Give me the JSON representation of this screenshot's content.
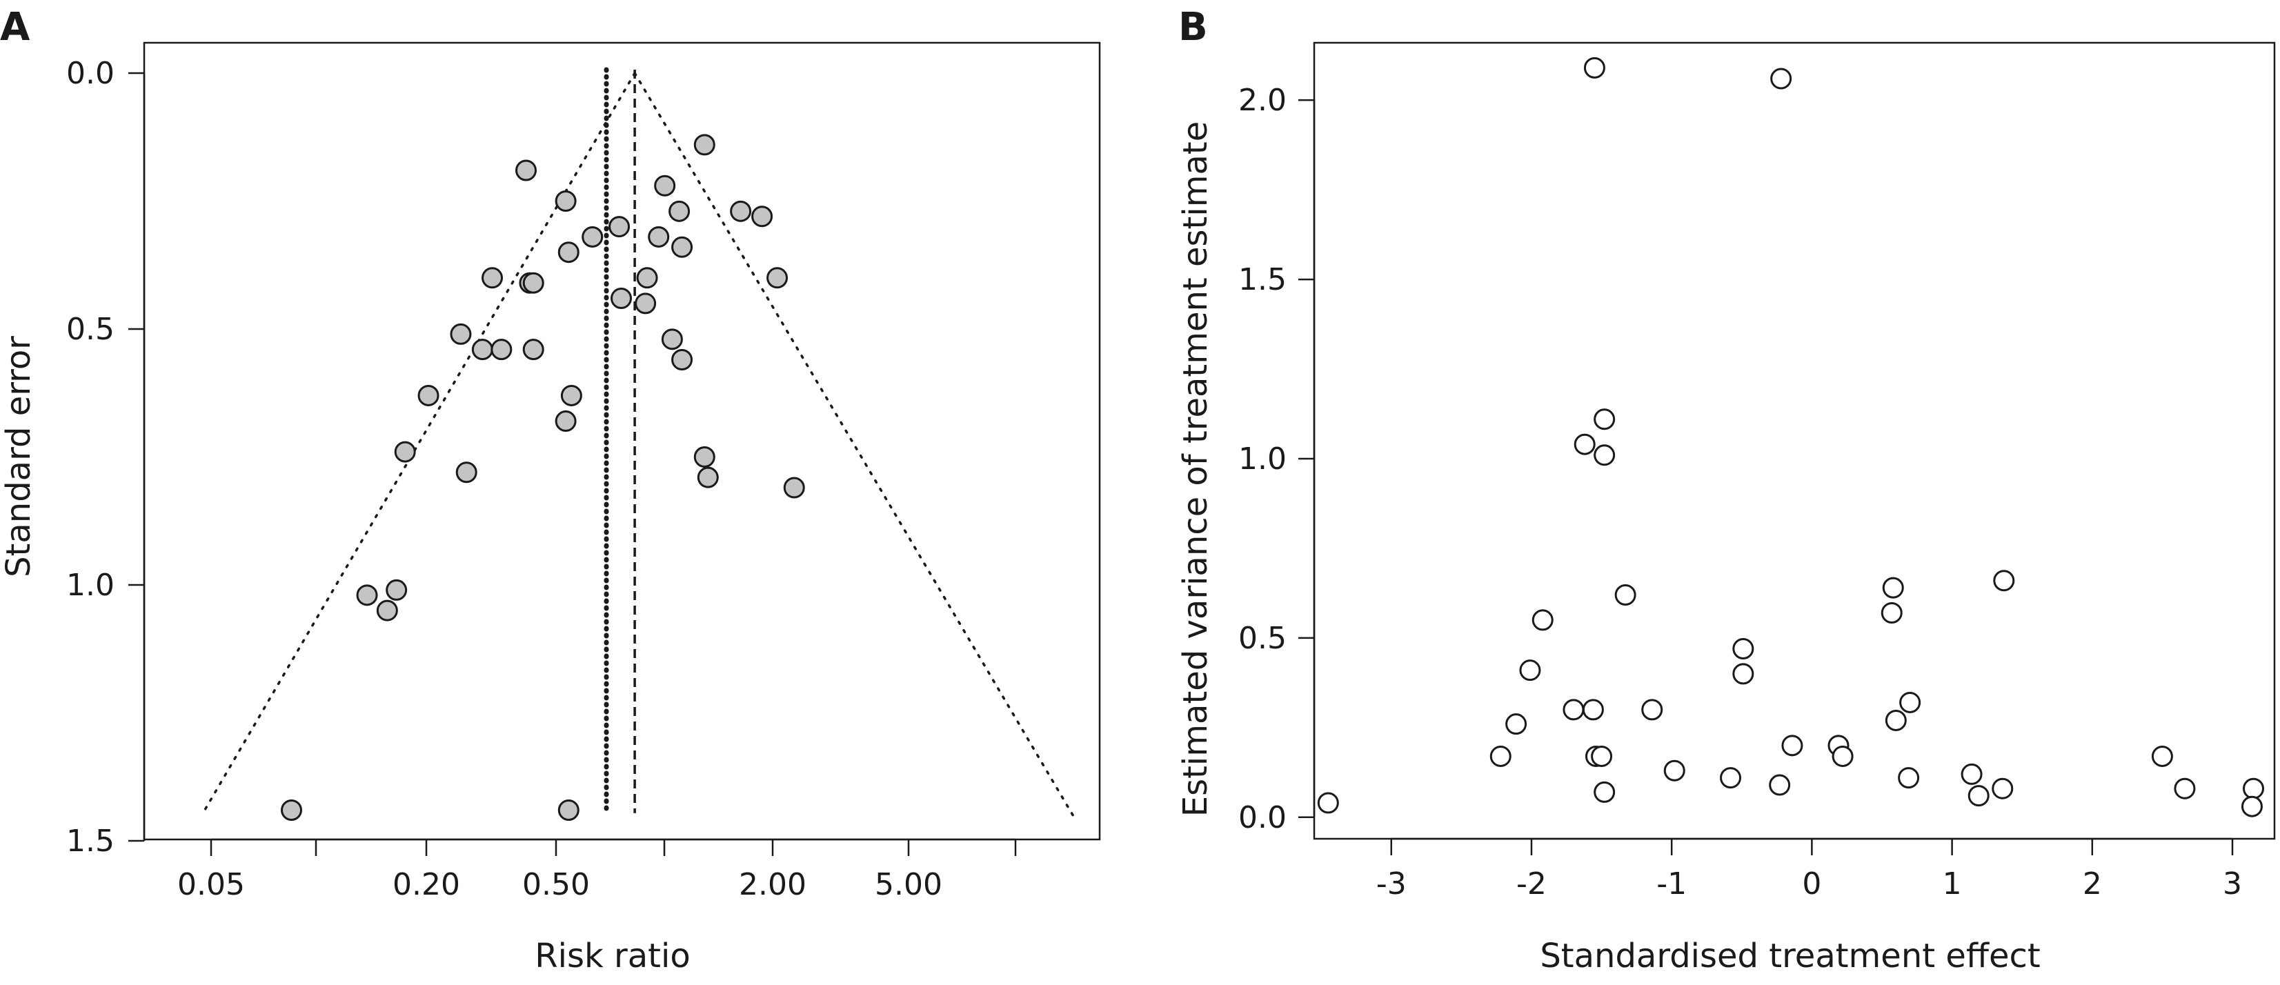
{
  "chart_data": [
    {
      "panel": "A",
      "type": "scatter",
      "xlabel": "Risk ratio",
      "ylabel": "Standard error",
      "x_scale": "log",
      "x_tick_labels": [
        "0.05",
        "0.20",
        "0.50",
        "2.00",
        "5.00"
      ],
      "y_tick_labels": [
        "0.0",
        "0.5",
        "1.0",
        "1.5"
      ],
      "ylim": [
        1.5,
        0.0
      ],
      "reference_lines": {
        "dotted_risk_ratio": 0.68,
        "dashed_risk_ratio": 0.82
      },
      "funnel_apex": {
        "risk_ratio": 0.82,
        "standard_error": 0.0
      },
      "funnel_base": {
        "standard_error": 1.45,
        "left_risk_ratio": 0.047,
        "right_risk_ratio": 14.8
      },
      "points": [
        {
          "x": 1.3,
          "y": 0.14
        },
        {
          "x": 0.4,
          "y": 0.19
        },
        {
          "x": 1.0,
          "y": 0.22
        },
        {
          "x": 0.52,
          "y": 0.25
        },
        {
          "x": 1.1,
          "y": 0.27
        },
        {
          "x": 1.65,
          "y": 0.27
        },
        {
          "x": 1.9,
          "y": 0.28
        },
        {
          "x": 0.74,
          "y": 0.3
        },
        {
          "x": 0.62,
          "y": 0.32
        },
        {
          "x": 0.96,
          "y": 0.32
        },
        {
          "x": 1.12,
          "y": 0.34
        },
        {
          "x": 0.53,
          "y": 0.35
        },
        {
          "x": 0.32,
          "y": 0.4
        },
        {
          "x": 0.41,
          "y": 0.41
        },
        {
          "x": 0.42,
          "y": 0.41
        },
        {
          "x": 0.89,
          "y": 0.4
        },
        {
          "x": 2.1,
          "y": 0.4
        },
        {
          "x": 0.75,
          "y": 0.44
        },
        {
          "x": 0.88,
          "y": 0.45
        },
        {
          "x": 0.26,
          "y": 0.51
        },
        {
          "x": 1.05,
          "y": 0.52
        },
        {
          "x": 0.3,
          "y": 0.54
        },
        {
          "x": 0.34,
          "y": 0.54
        },
        {
          "x": 0.42,
          "y": 0.54
        },
        {
          "x": 1.12,
          "y": 0.56
        },
        {
          "x": 0.21,
          "y": 0.63
        },
        {
          "x": 0.54,
          "y": 0.63
        },
        {
          "x": 0.52,
          "y": 0.68
        },
        {
          "x": 0.18,
          "y": 0.74
        },
        {
          "x": 1.3,
          "y": 0.75
        },
        {
          "x": 0.27,
          "y": 0.78
        },
        {
          "x": 1.33,
          "y": 0.79
        },
        {
          "x": 2.35,
          "y": 0.81
        },
        {
          "x": 0.17,
          "y": 1.01
        },
        {
          "x": 0.14,
          "y": 1.02
        },
        {
          "x": 0.16,
          "y": 1.05
        },
        {
          "x": 0.085,
          "y": 1.44
        },
        {
          "x": 0.53,
          "y": 1.44
        }
      ]
    },
    {
      "panel": "B",
      "type": "scatter",
      "xlabel": "Standardised treatment effect",
      "ylabel": "Estimated variance of treatment estimate",
      "x_ticks": [
        -3,
        -2,
        -1,
        0,
        1,
        2,
        3
      ],
      "x_tick_labels": [
        "-3",
        "-2",
        "-1",
        "0",
        "1",
        "2",
        "3"
      ],
      "y_ticks": [
        0.0,
        0.5,
        1.0,
        1.5,
        2.0
      ],
      "y_tick_labels": [
        "0.0",
        "0.5",
        "1.0",
        "1.5",
        "2.0"
      ],
      "xlim": [
        -3.55,
        3.3
      ],
      "ylim": [
        -0.06,
        2.16
      ],
      "points": [
        {
          "x": -1.55,
          "y": 2.09
        },
        {
          "x": -0.22,
          "y": 2.06
        },
        {
          "x": -1.48,
          "y": 1.11
        },
        {
          "x": -1.62,
          "y": 1.04
        },
        {
          "x": -1.48,
          "y": 1.01
        },
        {
          "x": 1.37,
          "y": 0.66
        },
        {
          "x": 0.58,
          "y": 0.64
        },
        {
          "x": -1.33,
          "y": 0.62
        },
        {
          "x": 0.57,
          "y": 0.57
        },
        {
          "x": -1.92,
          "y": 0.55
        },
        {
          "x": -0.49,
          "y": 0.47
        },
        {
          "x": -2.01,
          "y": 0.41
        },
        {
          "x": -0.49,
          "y": 0.4
        },
        {
          "x": 0.7,
          "y": 0.32
        },
        {
          "x": -1.7,
          "y": 0.3
        },
        {
          "x": -1.56,
          "y": 0.3
        },
        {
          "x": -1.14,
          "y": 0.3
        },
        {
          "x": 0.6,
          "y": 0.27
        },
        {
          "x": -2.11,
          "y": 0.26
        },
        {
          "x": -0.14,
          "y": 0.2
        },
        {
          "x": 0.19,
          "y": 0.2
        },
        {
          "x": -2.22,
          "y": 0.17
        },
        {
          "x": -1.54,
          "y": 0.17
        },
        {
          "x": -1.5,
          "y": 0.17
        },
        {
          "x": 0.22,
          "y": 0.17
        },
        {
          "x": 2.5,
          "y": 0.17
        },
        {
          "x": -0.98,
          "y": 0.13
        },
        {
          "x": 1.14,
          "y": 0.12
        },
        {
          "x": -0.58,
          "y": 0.11
        },
        {
          "x": 0.69,
          "y": 0.11
        },
        {
          "x": -0.23,
          "y": 0.09
        },
        {
          "x": 2.66,
          "y": 0.08
        },
        {
          "x": 3.15,
          "y": 0.08
        },
        {
          "x": -1.48,
          "y": 0.07
        },
        {
          "x": 1.36,
          "y": 0.08
        },
        {
          "x": 1.19,
          "y": 0.06
        },
        {
          "x": -3.45,
          "y": 0.04
        },
        {
          "x": 3.14,
          "y": 0.03
        }
      ]
    }
  ],
  "panel_labels": {
    "a": "A",
    "b": "B"
  }
}
